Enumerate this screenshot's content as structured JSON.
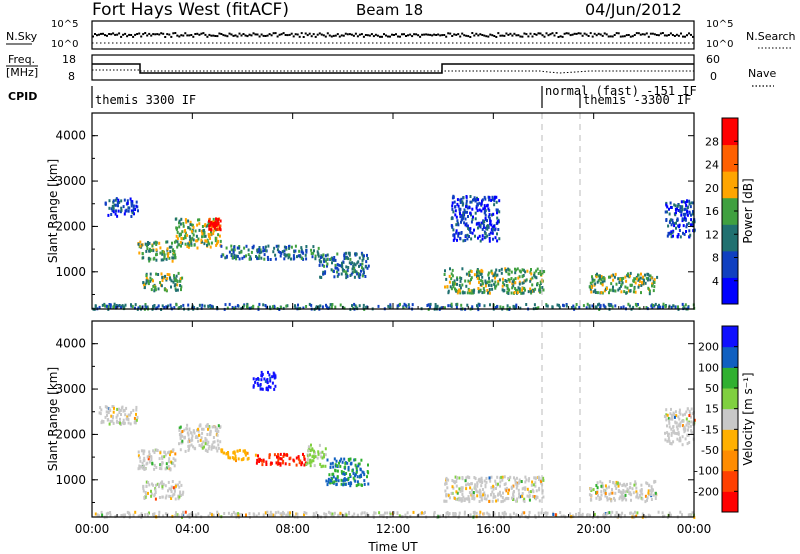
{
  "header": {
    "radar": "Fort Hays West (fitACF)",
    "beam": "Beam 18",
    "date": "04/Jun/2012"
  },
  "top_panels": {
    "nsky_label": "N.Sky",
    "nsky_ticks": [
      "10^5",
      "10^0"
    ],
    "nsearch_label": "N.Search",
    "nsearch_ticks": [
      "10^5",
      "10^0"
    ],
    "freq_label": "Freq.",
    "freq_unit": "[MHz]",
    "freq_ticks": [
      "18",
      "8"
    ],
    "nave_label": "Nave",
    "nave_ticks": [
      "60",
      "0"
    ],
    "cpid_label": "CPID",
    "cpid_segments": [
      "themis 3300 IF",
      "normal (fast) -151 IF",
      "themis -3300 IF"
    ]
  },
  "chart_data": [
    {
      "type": "heatmap",
      "title": "",
      "xlabel": "",
      "ylabel": "Slant Range [km]",
      "x_ticks": [
        "00:00",
        "04:00",
        "08:00",
        "12:00",
        "16:00",
        "20:00",
        "00:00"
      ],
      "y_ticks": [
        "1000",
        "2000",
        "3000",
        "4000"
      ],
      "ylim": [
        180,
        4500
      ],
      "colorbar": {
        "label": "Power [dB]",
        "ticks": [
          "28",
          "24",
          "20",
          "16",
          "12",
          "8",
          "4"
        ],
        "range": [
          0,
          30
        ],
        "colors": [
          "#0000ff",
          "#1040c0",
          "#207070",
          "#40a040",
          "#ffa500",
          "#ff6000",
          "#ff0000"
        ]
      },
      "series": [
        {
          "x_hour": [
            0.5,
            1.8
          ],
          "range_km": [
            2250,
            2650
          ],
          "value": 6
        },
        {
          "x_hour": [
            1.8,
            3.3
          ],
          "range_km": [
            1250,
            1700
          ],
          "value": 14
        },
        {
          "x_hour": [
            3.3,
            5.1
          ],
          "range_km": [
            1550,
            2200
          ],
          "value": 16
        },
        {
          "x_hour": [
            4.6,
            5.1
          ],
          "range_km": [
            1950,
            2200
          ],
          "value": 28
        },
        {
          "x_hour": [
            2.0,
            3.6
          ],
          "range_km": [
            600,
            1000
          ],
          "value": 14
        },
        {
          "x_hour": [
            5.1,
            9.0
          ],
          "range_km": [
            1300,
            1600
          ],
          "value": 10
        },
        {
          "x_hour": [
            9.0,
            11.0
          ],
          "range_km": [
            900,
            1450
          ],
          "value": 10
        },
        {
          "x_hour": [
            14.0,
            18.0
          ],
          "range_km": [
            550,
            1100
          ],
          "value": 14
        },
        {
          "x_hour": [
            19.8,
            22.5
          ],
          "range_km": [
            550,
            1000
          ],
          "value": 14
        },
        {
          "x_hour": [
            22.8,
            24.0
          ],
          "range_km": [
            1800,
            2600
          ],
          "value": 6
        },
        {
          "x_hour": [
            14.3,
            16.2
          ],
          "range_km": [
            1700,
            2700
          ],
          "value": 6
        },
        {
          "x_hour": [
            0.0,
            24.0
          ],
          "range_km": [
            200,
            320
          ],
          "value": 10
        }
      ]
    },
    {
      "type": "heatmap",
      "title": "",
      "xlabel": "Time UT",
      "ylabel": "Slant Range [km]",
      "x_ticks": [
        "00:00",
        "04:00",
        "08:00",
        "12:00",
        "16:00",
        "20:00",
        "00:00"
      ],
      "y_ticks": [
        "1000",
        "2000",
        "3000",
        "4000"
      ],
      "ylim": [
        180,
        4500
      ],
      "colorbar": {
        "label": "Velocity [m s⁻¹]",
        "ticks": [
          "200",
          "100",
          "50",
          "15",
          "-15",
          "-50",
          "-100",
          "-200"
        ],
        "range": [
          -250,
          250
        ],
        "colors": [
          "#ff0000",
          "#ff4000",
          "#ff8c00",
          "#ffb000",
          "#c8c8c8",
          "#80d040",
          "#30b030",
          "#1060c0",
          "#1010ff"
        ]
      },
      "series": [
        {
          "x_hour": [
            0.2,
            1.8
          ],
          "range_km": [
            2250,
            2650
          ],
          "value": 0
        },
        {
          "x_hour": [
            1.8,
            3.3
          ],
          "range_km": [
            1250,
            1700
          ],
          "value": 0
        },
        {
          "x_hour": [
            3.4,
            5.1
          ],
          "range_km": [
            1650,
            2250
          ],
          "value": 0
        },
        {
          "x_hour": [
            5.1,
            6.5
          ],
          "range_km": [
            1450,
            1700
          ],
          "value": -60
        },
        {
          "x_hour": [
            6.5,
            8.5
          ],
          "range_km": [
            1350,
            1600
          ],
          "value": -200
        },
        {
          "x_hour": [
            8.5,
            9.3
          ],
          "range_km": [
            1300,
            1800
          ],
          "value": 40
        },
        {
          "x_hour": [
            9.3,
            11.0
          ],
          "range_km": [
            900,
            1500
          ],
          "value": 140
        },
        {
          "x_hour": [
            2.0,
            3.6
          ],
          "range_km": [
            600,
            1000
          ],
          "value": 0
        },
        {
          "x_hour": [
            14.0,
            18.0
          ],
          "range_km": [
            550,
            1100
          ],
          "value": 0
        },
        {
          "x_hour": [
            19.8,
            22.5
          ],
          "range_km": [
            550,
            1000
          ],
          "value": 0
        },
        {
          "x_hour": [
            22.8,
            24.0
          ],
          "range_km": [
            1800,
            2600
          ],
          "value": 0
        },
        {
          "x_hour": [
            6.4,
            7.3
          ],
          "range_km": [
            3000,
            3400
          ],
          "value": 220
        },
        {
          "x_hour": [
            0.0,
            24.0
          ],
          "range_km": [
            200,
            320
          ],
          "value": 0
        }
      ]
    }
  ]
}
